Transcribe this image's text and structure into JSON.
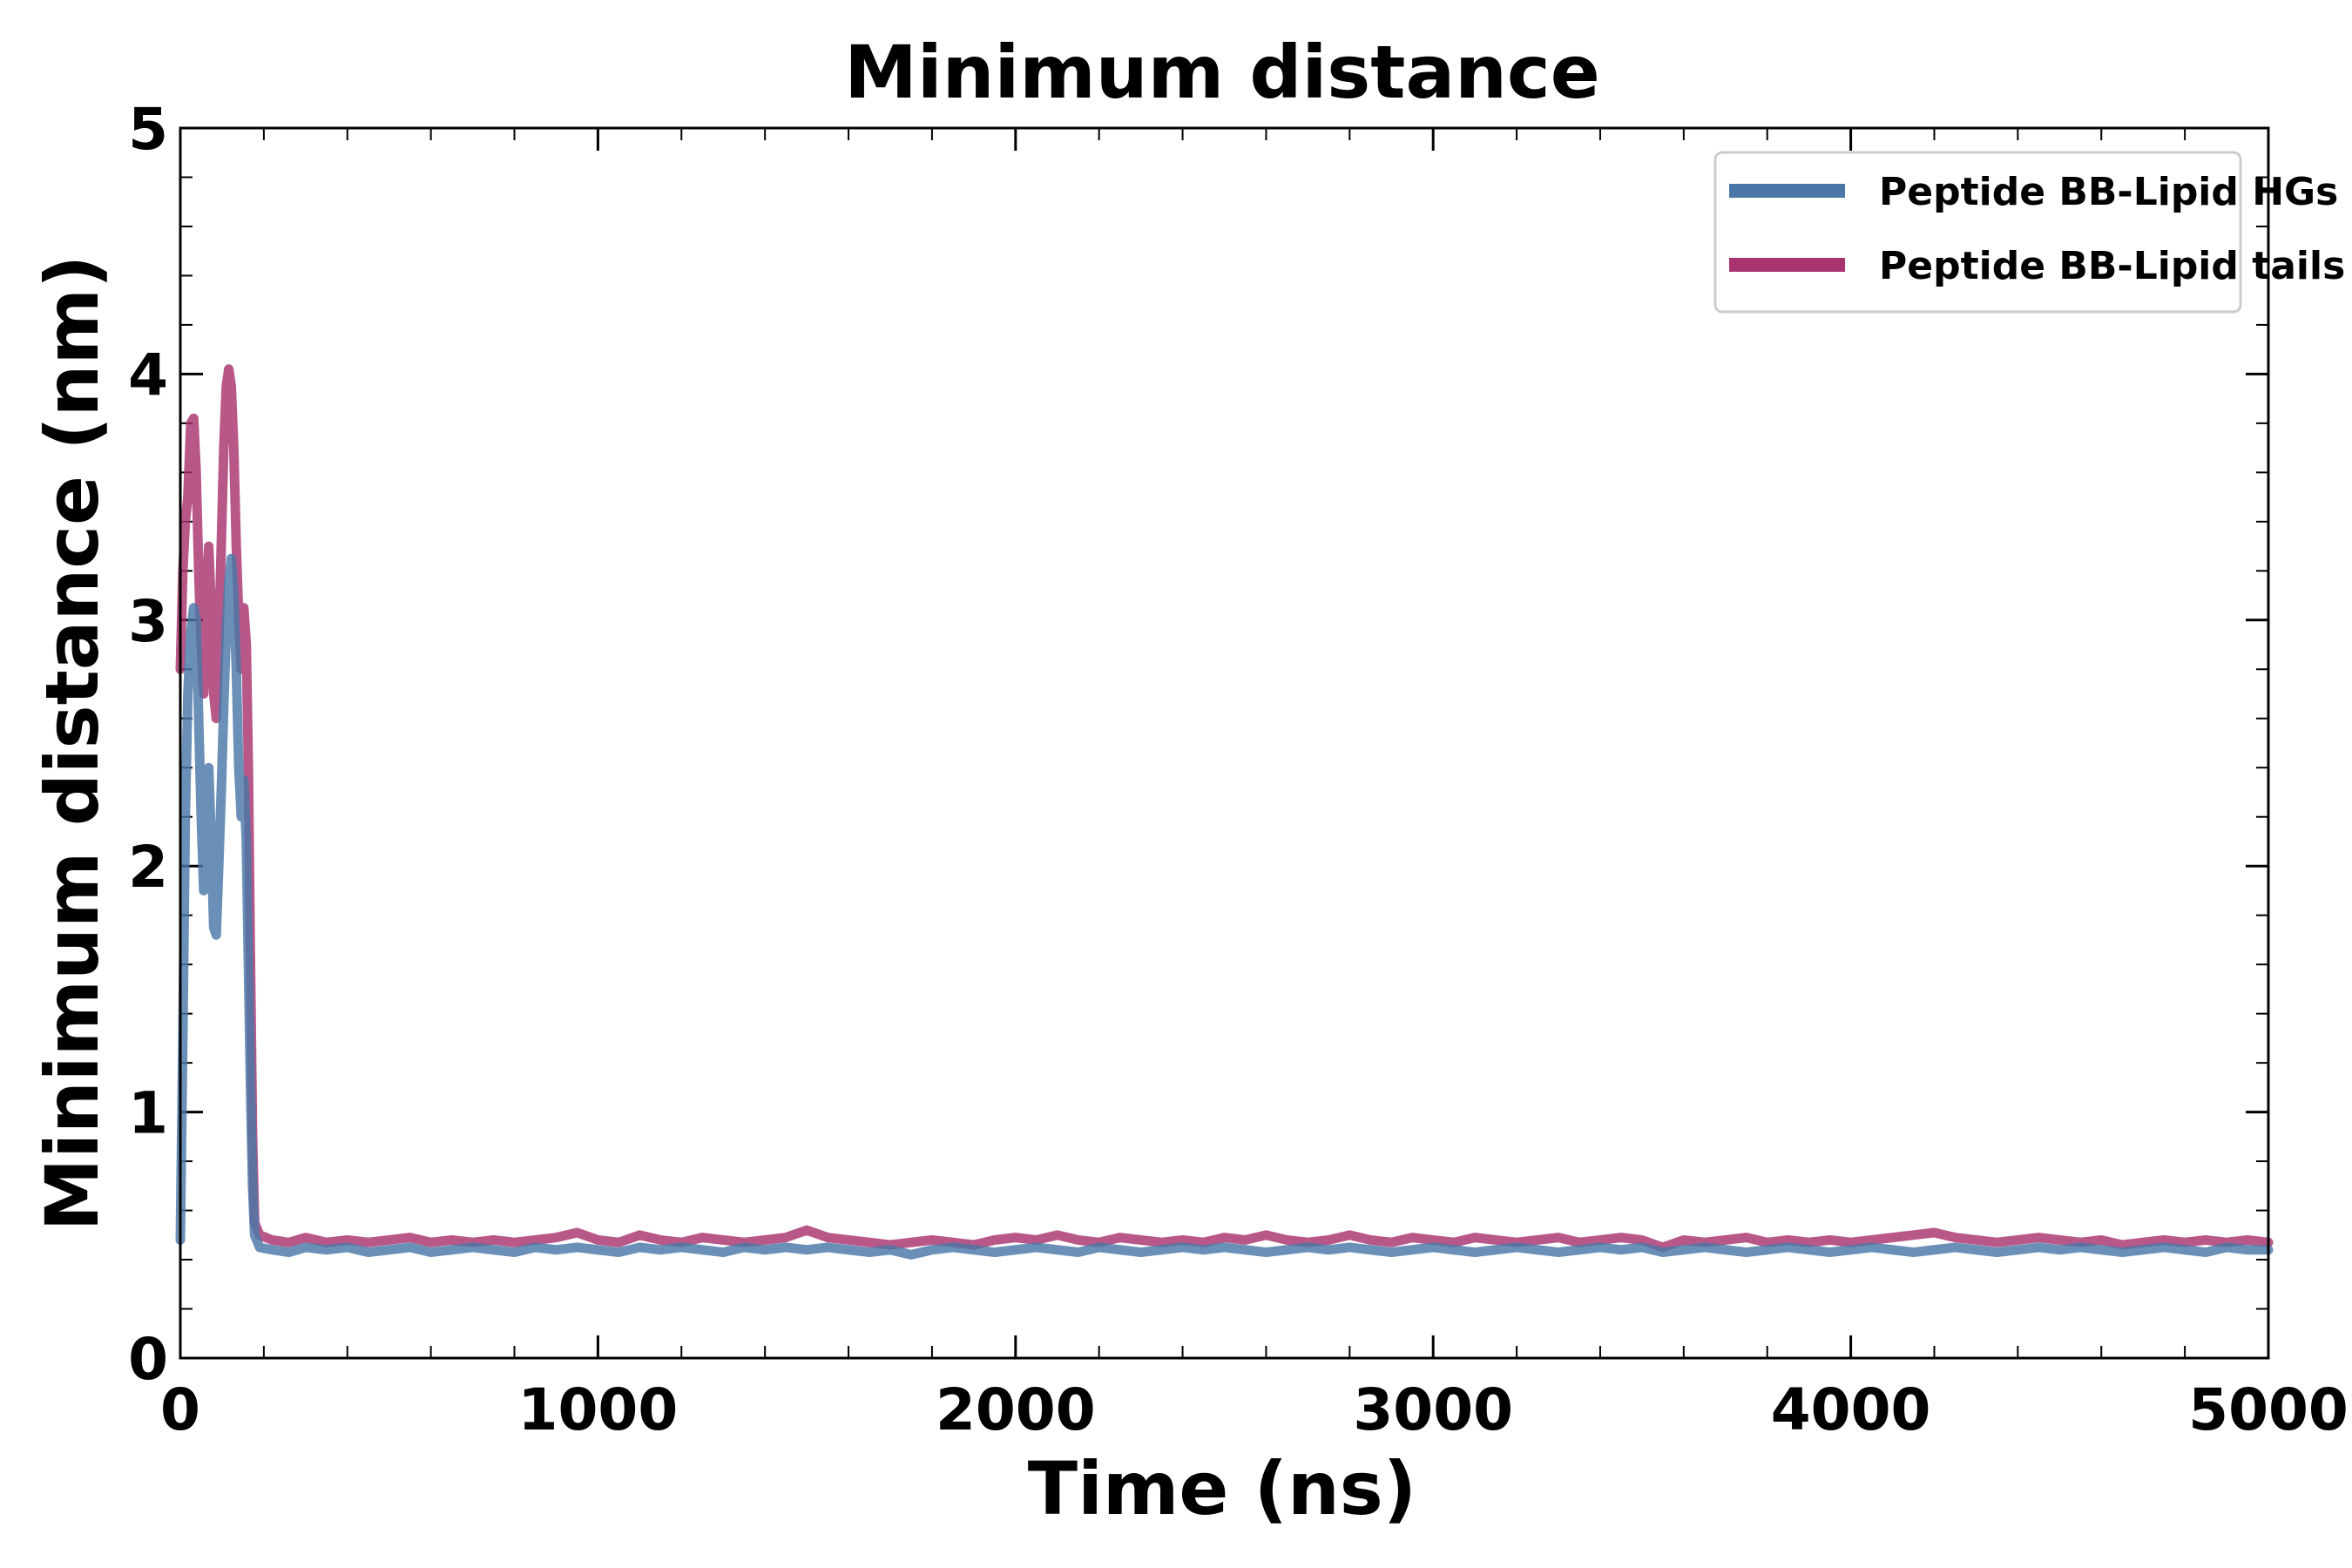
{
  "chart_data": {
    "type": "line",
    "title": "Minimum distance",
    "xlabel": "Time (ns)",
    "ylabel": "Minimum distance (nm)",
    "xlim": [
      0,
      5000
    ],
    "ylim": [
      0,
      5
    ],
    "xticks": [
      0,
      1000,
      2000,
      3000,
      4000,
      5000
    ],
    "xtick_labels": [
      "0",
      "1000",
      "2000",
      "3000",
      "4000",
      "5000"
    ],
    "yticks": [
      0,
      1,
      2,
      3,
      4,
      5
    ],
    "ytick_labels": [
      "0",
      "1",
      "2",
      "3",
      "4",
      "5"
    ],
    "grid": false,
    "legend_position": "top-right",
    "series": [
      {
        "name": "Peptide BB-Lipid HGs",
        "color": "#4a77a8",
        "points": [
          [
            0,
            0.48
          ],
          [
            6,
            1.3
          ],
          [
            12,
            2.2
          ],
          [
            18,
            2.7
          ],
          [
            25,
            2.95
          ],
          [
            32,
            3.05
          ],
          [
            38,
            3.0
          ],
          [
            44,
            2.6
          ],
          [
            50,
            2.2
          ],
          [
            56,
            1.9
          ],
          [
            62,
            2.1
          ],
          [
            68,
            2.4
          ],
          [
            74,
            2.1
          ],
          [
            80,
            1.75
          ],
          [
            86,
            1.72
          ],
          [
            92,
            2.0
          ],
          [
            98,
            2.3
          ],
          [
            104,
            2.65
          ],
          [
            110,
            2.95
          ],
          [
            116,
            3.15
          ],
          [
            122,
            3.25
          ],
          [
            128,
            3.1
          ],
          [
            134,
            2.8
          ],
          [
            140,
            2.4
          ],
          [
            146,
            2.2
          ],
          [
            152,
            2.35
          ],
          [
            158,
            2.1
          ],
          [
            163,
            1.6
          ],
          [
            168,
            1.1
          ],
          [
            173,
            0.7
          ],
          [
            178,
            0.5
          ],
          [
            190,
            0.45
          ],
          [
            220,
            0.44
          ],
          [
            260,
            0.43
          ],
          [
            300,
            0.45
          ],
          [
            350,
            0.44
          ],
          [
            400,
            0.45
          ],
          [
            450,
            0.43
          ],
          [
            500,
            0.44
          ],
          [
            550,
            0.45
          ],
          [
            600,
            0.43
          ],
          [
            650,
            0.44
          ],
          [
            700,
            0.45
          ],
          [
            750,
            0.44
          ],
          [
            800,
            0.43
          ],
          [
            850,
            0.45
          ],
          [
            900,
            0.44
          ],
          [
            950,
            0.45
          ],
          [
            1000,
            0.44
          ],
          [
            1050,
            0.43
          ],
          [
            1100,
            0.45
          ],
          [
            1150,
            0.44
          ],
          [
            1200,
            0.45
          ],
          [
            1250,
            0.44
          ],
          [
            1300,
            0.43
          ],
          [
            1350,
            0.45
          ],
          [
            1400,
            0.44
          ],
          [
            1450,
            0.45
          ],
          [
            1500,
            0.44
          ],
          [
            1550,
            0.45
          ],
          [
            1600,
            0.44
          ],
          [
            1650,
            0.43
          ],
          [
            1700,
            0.44
          ],
          [
            1750,
            0.42
          ],
          [
            1800,
            0.44
          ],
          [
            1850,
            0.45
          ],
          [
            1900,
            0.44
          ],
          [
            1950,
            0.43
          ],
          [
            2000,
            0.44
          ],
          [
            2050,
            0.45
          ],
          [
            2100,
            0.44
          ],
          [
            2150,
            0.43
          ],
          [
            2200,
            0.45
          ],
          [
            2250,
            0.44
          ],
          [
            2300,
            0.43
          ],
          [
            2350,
            0.44
          ],
          [
            2400,
            0.45
          ],
          [
            2450,
            0.44
          ],
          [
            2500,
            0.45
          ],
          [
            2550,
            0.44
          ],
          [
            2600,
            0.43
          ],
          [
            2650,
            0.44
          ],
          [
            2700,
            0.45
          ],
          [
            2750,
            0.44
          ],
          [
            2800,
            0.45
          ],
          [
            2850,
            0.44
          ],
          [
            2900,
            0.43
          ],
          [
            2950,
            0.44
          ],
          [
            3000,
            0.45
          ],
          [
            3050,
            0.44
          ],
          [
            3100,
            0.43
          ],
          [
            3150,
            0.44
          ],
          [
            3200,
            0.45
          ],
          [
            3250,
            0.44
          ],
          [
            3300,
            0.43
          ],
          [
            3350,
            0.44
          ],
          [
            3400,
            0.45
          ],
          [
            3450,
            0.44
          ],
          [
            3500,
            0.45
          ],
          [
            3550,
            0.43
          ],
          [
            3600,
            0.44
          ],
          [
            3650,
            0.45
          ],
          [
            3700,
            0.44
          ],
          [
            3750,
            0.43
          ],
          [
            3800,
            0.44
          ],
          [
            3850,
            0.45
          ],
          [
            3900,
            0.44
          ],
          [
            3950,
            0.43
          ],
          [
            4000,
            0.44
          ],
          [
            4050,
            0.45
          ],
          [
            4100,
            0.44
          ],
          [
            4150,
            0.43
          ],
          [
            4200,
            0.44
          ],
          [
            4250,
            0.45
          ],
          [
            4300,
            0.44
          ],
          [
            4350,
            0.43
          ],
          [
            4400,
            0.44
          ],
          [
            4450,
            0.45
          ],
          [
            4500,
            0.44
          ],
          [
            4550,
            0.45
          ],
          [
            4600,
            0.44
          ],
          [
            4650,
            0.43
          ],
          [
            4700,
            0.44
          ],
          [
            4750,
            0.45
          ],
          [
            4800,
            0.44
          ],
          [
            4850,
            0.43
          ],
          [
            4900,
            0.45
          ],
          [
            4950,
            0.44
          ],
          [
            5000,
            0.44
          ]
        ]
      },
      {
        "name": "Peptide BB-Lipid tails",
        "color": "#a8336e",
        "points": [
          [
            0,
            2.8
          ],
          [
            6,
            3.2
          ],
          [
            12,
            3.4
          ],
          [
            18,
            3.5
          ],
          [
            25,
            3.8
          ],
          [
            32,
            3.82
          ],
          [
            38,
            3.6
          ],
          [
            44,
            3.2
          ],
          [
            50,
            2.9
          ],
          [
            56,
            2.7
          ],
          [
            62,
            3.1
          ],
          [
            68,
            3.3
          ],
          [
            74,
            3.05
          ],
          [
            80,
            2.7
          ],
          [
            86,
            2.6
          ],
          [
            92,
            2.9
          ],
          [
            98,
            3.3
          ],
          [
            104,
            3.7
          ],
          [
            110,
            3.95
          ],
          [
            116,
            4.02
          ],
          [
            122,
            3.95
          ],
          [
            128,
            3.7
          ],
          [
            134,
            3.3
          ],
          [
            140,
            3.0
          ],
          [
            146,
            2.8
          ],
          [
            152,
            3.05
          ],
          [
            158,
            2.9
          ],
          [
            163,
            2.4
          ],
          [
            168,
            1.6
          ],
          [
            173,
            0.9
          ],
          [
            178,
            0.55
          ],
          [
            190,
            0.5
          ],
          [
            220,
            0.48
          ],
          [
            260,
            0.47
          ],
          [
            300,
            0.49
          ],
          [
            350,
            0.47
          ],
          [
            400,
            0.48
          ],
          [
            450,
            0.47
          ],
          [
            500,
            0.48
          ],
          [
            550,
            0.49
          ],
          [
            600,
            0.47
          ],
          [
            650,
            0.48
          ],
          [
            700,
            0.47
          ],
          [
            750,
            0.48
          ],
          [
            800,
            0.47
          ],
          [
            850,
            0.48
          ],
          [
            900,
            0.49
          ],
          [
            950,
            0.51
          ],
          [
            1000,
            0.48
          ],
          [
            1050,
            0.47
          ],
          [
            1100,
            0.5
          ],
          [
            1150,
            0.48
          ],
          [
            1200,
            0.47
          ],
          [
            1250,
            0.49
          ],
          [
            1300,
            0.48
          ],
          [
            1350,
            0.47
          ],
          [
            1400,
            0.48
          ],
          [
            1450,
            0.49
          ],
          [
            1500,
            0.52
          ],
          [
            1550,
            0.49
          ],
          [
            1600,
            0.48
          ],
          [
            1650,
            0.47
          ],
          [
            1700,
            0.46
          ],
          [
            1750,
            0.47
          ],
          [
            1800,
            0.48
          ],
          [
            1850,
            0.47
          ],
          [
            1900,
            0.46
          ],
          [
            1950,
            0.48
          ],
          [
            2000,
            0.49
          ],
          [
            2050,
            0.48
          ],
          [
            2100,
            0.5
          ],
          [
            2150,
            0.48
          ],
          [
            2200,
            0.47
          ],
          [
            2250,
            0.49
          ],
          [
            2300,
            0.48
          ],
          [
            2350,
            0.47
          ],
          [
            2400,
            0.48
          ],
          [
            2450,
            0.47
          ],
          [
            2500,
            0.49
          ],
          [
            2550,
            0.48
          ],
          [
            2600,
            0.5
          ],
          [
            2650,
            0.48
          ],
          [
            2700,
            0.47
          ],
          [
            2750,
            0.48
          ],
          [
            2800,
            0.5
          ],
          [
            2850,
            0.48
          ],
          [
            2900,
            0.47
          ],
          [
            2950,
            0.49
          ],
          [
            3000,
            0.48
          ],
          [
            3050,
            0.47
          ],
          [
            3100,
            0.49
          ],
          [
            3150,
            0.48
          ],
          [
            3200,
            0.47
          ],
          [
            3250,
            0.48
          ],
          [
            3300,
            0.49
          ],
          [
            3350,
            0.47
          ],
          [
            3400,
            0.48
          ],
          [
            3450,
            0.49
          ],
          [
            3500,
            0.48
          ],
          [
            3550,
            0.45
          ],
          [
            3600,
            0.48
          ],
          [
            3650,
            0.47
          ],
          [
            3700,
            0.48
          ],
          [
            3750,
            0.49
          ],
          [
            3800,
            0.47
          ],
          [
            3850,
            0.48
          ],
          [
            3900,
            0.47
          ],
          [
            3950,
            0.48
          ],
          [
            4000,
            0.47
          ],
          [
            4050,
            0.48
          ],
          [
            4100,
            0.49
          ],
          [
            4150,
            0.5
          ],
          [
            4200,
            0.51
          ],
          [
            4250,
            0.49
          ],
          [
            4300,
            0.48
          ],
          [
            4350,
            0.47
          ],
          [
            4400,
            0.48
          ],
          [
            4450,
            0.49
          ],
          [
            4500,
            0.48
          ],
          [
            4550,
            0.47
          ],
          [
            4600,
            0.48
          ],
          [
            4650,
            0.46
          ],
          [
            4700,
            0.47
          ],
          [
            4750,
            0.48
          ],
          [
            4800,
            0.47
          ],
          [
            4850,
            0.48
          ],
          [
            4900,
            0.47
          ],
          [
            4950,
            0.48
          ],
          [
            5000,
            0.47
          ]
        ]
      }
    ]
  }
}
